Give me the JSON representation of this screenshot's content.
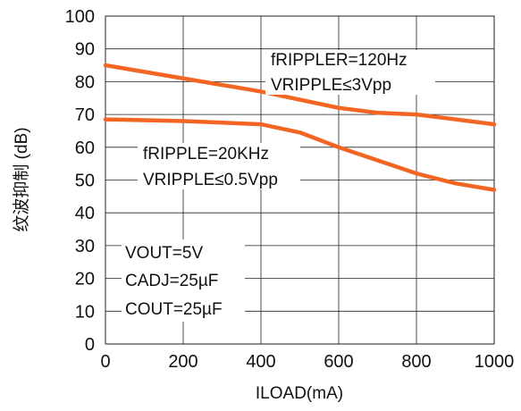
{
  "chart_data": {
    "type": "line",
    "xlabel": "ILOAD(mA)",
    "ylabel": "纹波抑制 (dB)",
    "xlim": [
      0,
      1000
    ],
    "ylim": [
      0,
      100
    ],
    "x_ticks": [
      "0",
      "200",
      "400",
      "600",
      "800",
      "1000"
    ],
    "y_ticks": [
      "0",
      "10",
      "20",
      "30",
      "40",
      "50",
      "60",
      "70",
      "80",
      "90",
      "100"
    ],
    "grid": true,
    "line_color": "#f26522",
    "series": [
      {
        "x": [
          0,
          200,
          400,
          600,
          700,
          800,
          1000
        ],
        "y": [
          85,
          81,
          77,
          72,
          70.5,
          70,
          67
        ]
      },
      {
        "x": [
          0,
          200,
          400,
          500,
          600,
          800,
          900,
          1000
        ],
        "y": [
          68.5,
          68,
          67,
          64.5,
          60,
          52,
          49,
          47
        ]
      }
    ],
    "annotations": [
      "fRIPPLER=120Hz",
      "VRIPPLE≤3Vpp",
      "fRIPPLE=20KHz",
      "VRIPPLE≤0.5Vpp",
      "VOUT=5V",
      "CADJ=25µF",
      "COUT=25µF"
    ]
  }
}
